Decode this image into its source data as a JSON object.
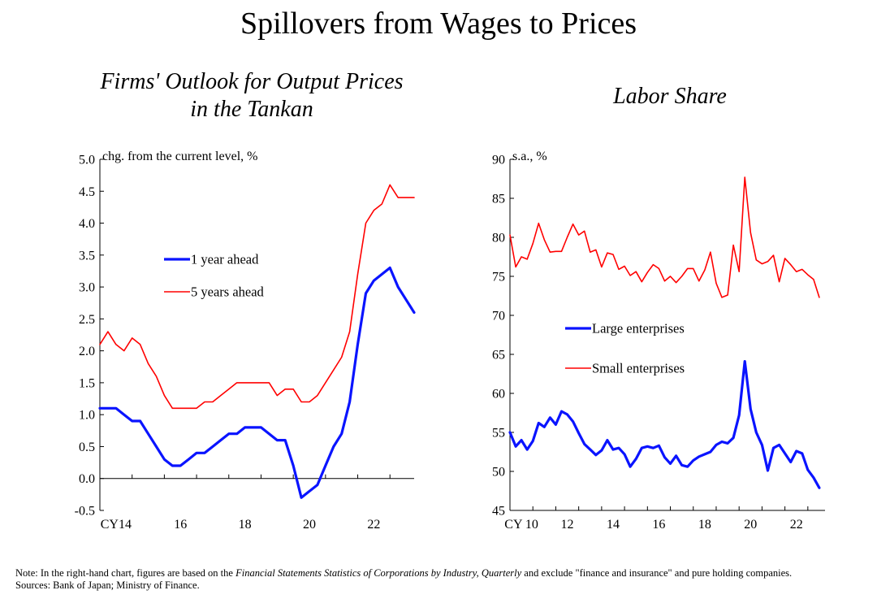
{
  "title": "Spillovers from Wages to Prices",
  "chart_data": [
    {
      "type": "line",
      "title": "Firms' Outlook for Output Prices",
      "title_line2": "in the Tankan",
      "ylabel": "chg. from the current level, %",
      "xlabel": "",
      "ylim": [
        -0.5,
        5.0
      ],
      "yticks": [
        -0.5,
        0.0,
        0.5,
        1.0,
        1.5,
        2.0,
        2.5,
        3.0,
        3.5,
        4.0,
        4.5,
        5.0
      ],
      "ytick_labels": [
        "-0.5",
        "0.0",
        "0.5",
        "1.0",
        "1.5",
        "2.0",
        "2.5",
        "3.0",
        "3.5",
        "4.0",
        "4.5",
        "5.0"
      ],
      "xlim": [
        2014.0,
        2023.75
      ],
      "xtick_values": [
        2014,
        2016,
        2018,
        2020,
        2022
      ],
      "xtick_labels": [
        "CY14",
        "16",
        "18",
        "20",
        "22"
      ],
      "zero_line": true,
      "legend": [
        "1 year ahead",
        "5 years ahead"
      ],
      "series": [
        {
          "name": "1 year ahead",
          "color": "#0a14ff",
          "x": [
            2014.0,
            2014.25,
            2014.5,
            2014.75,
            2015.0,
            2015.25,
            2015.5,
            2015.75,
            2016.0,
            2016.25,
            2016.5,
            2016.75,
            2017.0,
            2017.25,
            2017.5,
            2017.75,
            2018.0,
            2018.25,
            2018.5,
            2018.75,
            2019.0,
            2019.25,
            2019.5,
            2019.75,
            2020.0,
            2020.25,
            2020.5,
            2020.75,
            2021.0,
            2021.25,
            2021.5,
            2021.75,
            2022.0,
            2022.25,
            2022.5,
            2022.75,
            2023.0,
            2023.25,
            2023.5,
            2023.75
          ],
          "values": [
            1.1,
            1.1,
            1.1,
            1.0,
            0.9,
            0.9,
            0.7,
            0.5,
            0.3,
            0.2,
            0.2,
            0.3,
            0.4,
            0.4,
            0.5,
            0.6,
            0.7,
            0.7,
            0.8,
            0.8,
            0.8,
            0.7,
            0.6,
            0.6,
            0.2,
            -0.3,
            -0.2,
            -0.1,
            0.2,
            0.5,
            0.7,
            1.2,
            2.1,
            2.9,
            3.1,
            3.2,
            3.3,
            3.0,
            2.8,
            2.6
          ]
        },
        {
          "name": "5 years ahead",
          "color": "#ff0000",
          "x": [
            2014.0,
            2014.25,
            2014.5,
            2014.75,
            2015.0,
            2015.25,
            2015.5,
            2015.75,
            2016.0,
            2016.25,
            2016.5,
            2016.75,
            2017.0,
            2017.25,
            2017.5,
            2017.75,
            2018.0,
            2018.25,
            2018.5,
            2018.75,
            2019.0,
            2019.25,
            2019.5,
            2019.75,
            2020.0,
            2020.25,
            2020.5,
            2020.75,
            2021.0,
            2021.25,
            2021.5,
            2021.75,
            2022.0,
            2022.25,
            2022.5,
            2022.75,
            2023.0,
            2023.25,
            2023.5,
            2023.75
          ],
          "values": [
            2.1,
            2.3,
            2.1,
            2.0,
            2.2,
            2.1,
            1.8,
            1.6,
            1.3,
            1.1,
            1.1,
            1.1,
            1.1,
            1.2,
            1.2,
            1.3,
            1.4,
            1.5,
            1.5,
            1.5,
            1.5,
            1.5,
            1.3,
            1.4,
            1.4,
            1.2,
            1.2,
            1.3,
            1.5,
            1.7,
            1.9,
            2.3,
            3.2,
            4.0,
            4.2,
            4.3,
            4.6,
            4.4,
            4.4,
            4.4
          ]
        }
      ]
    },
    {
      "type": "line",
      "title": "Labor Share",
      "ylabel": "s.a., %",
      "xlabel": "",
      "ylim": [
        45,
        90
      ],
      "yticks": [
        45,
        50,
        55,
        60,
        65,
        70,
        75,
        80,
        85,
        90
      ],
      "ytick_labels": [
        "45",
        "50",
        "55",
        "60",
        "65",
        "70",
        "75",
        "80",
        "85",
        "90"
      ],
      "xlim": [
        2010.0,
        2023.75
      ],
      "xtick_values": [
        2010,
        2012,
        2014,
        2016,
        2018,
        2020,
        2022
      ],
      "xtick_labels": [
        "CY 10",
        "12",
        "14",
        "16",
        "18",
        "20",
        "22"
      ],
      "legend": [
        "Large enterprises",
        "Small enterprises"
      ],
      "series": [
        {
          "name": "Large enterprises",
          "color": "#0a14ff",
          "x": [
            2010.0,
            2010.25,
            2010.5,
            2010.75,
            2011.0,
            2011.25,
            2011.5,
            2011.75,
            2012.0,
            2012.25,
            2012.5,
            2012.75,
            2013.0,
            2013.25,
            2013.5,
            2013.75,
            2014.0,
            2014.25,
            2014.5,
            2014.75,
            2015.0,
            2015.25,
            2015.5,
            2015.75,
            2016.0,
            2016.25,
            2016.5,
            2016.75,
            2017.0,
            2017.25,
            2017.5,
            2017.75,
            2018.0,
            2018.25,
            2018.5,
            2018.75,
            2019.0,
            2019.25,
            2019.5,
            2019.75,
            2020.0,
            2020.25,
            2020.5,
            2020.75,
            2021.0,
            2021.25,
            2021.5,
            2021.75,
            2022.0,
            2022.25,
            2022.5,
            2022.75,
            2023.0,
            2023.25,
            2023.5,
            2023.75
          ],
          "values": [
            55.0,
            53.2,
            54.0,
            52.8,
            53.9,
            56.2,
            55.7,
            56.9,
            56.0,
            57.7,
            57.3,
            56.4,
            54.9,
            53.5,
            52.8,
            52.1,
            52.7,
            54.0,
            52.8,
            53.0,
            52.2,
            50.6,
            51.6,
            53.0,
            53.2,
            53.0,
            53.3,
            51.8,
            51.0,
            52.0,
            50.8,
            50.6,
            51.4,
            51.9,
            52.2,
            52.5,
            53.4,
            53.8,
            53.6,
            54.3,
            57.2,
            64.1,
            58.0,
            55.0,
            53.4,
            50.1,
            53.0,
            53.4,
            52.3,
            51.2,
            52.6,
            52.3,
            50.2,
            49.2,
            47.9,
            48.0
          ],
          "plot_count": 55
        },
        {
          "name": "Small enterprises",
          "color": "#ff0000",
          "x": [
            2010.0,
            2010.25,
            2010.5,
            2010.75,
            2011.0,
            2011.25,
            2011.5,
            2011.75,
            2012.0,
            2012.25,
            2012.5,
            2012.75,
            2013.0,
            2013.25,
            2013.5,
            2013.75,
            2014.0,
            2014.25,
            2014.5,
            2014.75,
            2015.0,
            2015.25,
            2015.5,
            2015.75,
            2016.0,
            2016.25,
            2016.5,
            2016.75,
            2017.0,
            2017.25,
            2017.5,
            2017.75,
            2018.0,
            2018.25,
            2018.5,
            2018.75,
            2019.0,
            2019.25,
            2019.5,
            2019.75,
            2020.0,
            2020.25,
            2020.5,
            2020.75,
            2021.0,
            2021.25,
            2021.5,
            2021.75,
            2022.0,
            2022.25,
            2022.5,
            2022.75,
            2023.0,
            2023.25,
            2023.5
          ],
          "values": [
            80.3,
            76.2,
            77.5,
            77.2,
            79.2,
            81.8,
            79.7,
            78.1,
            78.2,
            78.2,
            80.0,
            81.7,
            80.3,
            80.8,
            78.1,
            78.4,
            76.2,
            78.0,
            77.8,
            75.9,
            76.3,
            75.1,
            75.6,
            74.3,
            75.5,
            76.5,
            76.0,
            74.4,
            75.0,
            74.2,
            75.0,
            76.0,
            76.0,
            74.4,
            75.8,
            78.1,
            74.1,
            72.3,
            72.6,
            79.0,
            75.6,
            87.7,
            80.6,
            77.1,
            76.6,
            76.9,
            77.7,
            74.3,
            77.3,
            76.5,
            75.6,
            75.9,
            75.2,
            74.6,
            72.3
          ]
        }
      ]
    }
  ],
  "footnote": {
    "note_prefix": "Note: In the right-hand chart, figures are based on the ",
    "note_italic": "Financial Statements Statistics of Corporations by Industry, Quarterly",
    "note_suffix": " and exclude \"finance and insurance\" and pure holding companies.",
    "sources": "Sources: Bank of Japan; Ministry of Finance."
  }
}
